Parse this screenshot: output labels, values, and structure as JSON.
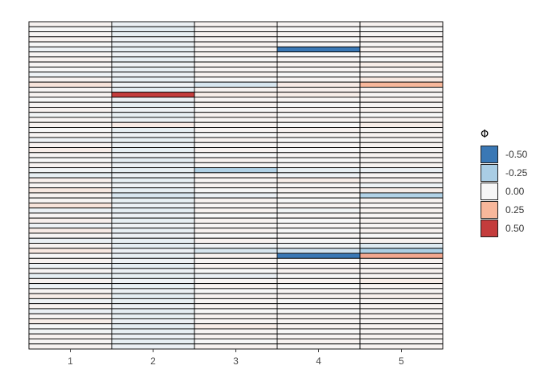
{
  "chart_data": {
    "type": "heatmap",
    "title": "",
    "xlabel": "",
    "ylabel": "",
    "x_categories": [
      "1",
      "2",
      "3",
      "4",
      "5"
    ],
    "n_rows": 65,
    "value_range": [
      -0.6,
      0.6
    ],
    "legend": {
      "title": "Φ",
      "placement": "right",
      "entries": [
        {
          "label": "-0.50",
          "value": -0.5,
          "color": "#3a78b5"
        },
        {
          "label": "-0.25",
          "value": -0.25,
          "color": "#a9cde4"
        },
        {
          "label": "0.00",
          "value": 0.0,
          "color": "#f7f7f7"
        },
        {
          "label": "0.25",
          "value": 0.25,
          "color": "#f8b79b"
        },
        {
          "label": "0.50",
          "value": 0.5,
          "color": "#c43c3c"
        }
      ]
    },
    "cell_border_color": "#000000",
    "cells": [
      [
        0.02,
        -0.04,
        0.02,
        0.01,
        0.02
      ],
      [
        0.0,
        -0.06,
        0.01,
        0.0,
        0.0
      ],
      [
        0.01,
        -0.05,
        0.02,
        0.01,
        0.01
      ],
      [
        0.02,
        -0.03,
        0.01,
        0.0,
        0.02
      ],
      [
        0.0,
        -0.04,
        0.02,
        0.01,
        0.01
      ],
      [
        -0.03,
        -0.05,
        0.01,
        -0.55,
        0.02
      ],
      [
        0.01,
        -0.03,
        0.02,
        0.0,
        0.01
      ],
      [
        0.02,
        -0.05,
        0.0,
        0.01,
        0.0
      ],
      [
        0.01,
        -0.03,
        0.02,
        0.02,
        0.04
      ],
      [
        0.0,
        -0.05,
        0.01,
        0.01,
        0.02
      ],
      [
        -0.03,
        -0.04,
        0.02,
        0.0,
        0.01
      ],
      [
        0.02,
        -0.05,
        0.0,
        0.01,
        0.06
      ],
      [
        0.08,
        -0.03,
        -0.1,
        0.05,
        0.25
      ],
      [
        0.01,
        -0.06,
        0.02,
        0.03,
        0.02
      ],
      [
        0.02,
        0.5,
        0.04,
        0.04,
        0.01
      ],
      [
        0.0,
        -0.04,
        0.01,
        0.01,
        0.02
      ],
      [
        0.01,
        -0.05,
        0.02,
        0.0,
        0.01
      ],
      [
        0.02,
        -0.03,
        0.0,
        0.01,
        0.02
      ],
      [
        -0.02,
        -0.05,
        0.02,
        0.0,
        0.0
      ],
      [
        0.01,
        -0.04,
        0.01,
        0.01,
        0.02
      ],
      [
        0.02,
        0.05,
        0.02,
        0.0,
        0.04
      ],
      [
        0.0,
        -0.05,
        0.01,
        0.02,
        0.01
      ],
      [
        0.01,
        -0.03,
        0.0,
        0.01,
        0.02
      ],
      [
        -0.03,
        -0.05,
        0.02,
        0.0,
        0.01
      ],
      [
        0.02,
        -0.04,
        0.01,
        0.01,
        0.02
      ],
      [
        0.04,
        -0.05,
        0.02,
        0.0,
        0.01
      ],
      [
        0.01,
        -0.03,
        0.0,
        0.01,
        0.02
      ],
      [
        0.0,
        -0.06,
        0.02,
        0.0,
        0.01
      ],
      [
        0.02,
        -0.04,
        0.01,
        0.01,
        0.02
      ],
      [
        -0.02,
        -0.05,
        -0.22,
        -0.05,
        -0.04
      ],
      [
        -0.05,
        -0.04,
        0.02,
        -0.03,
        0.01
      ],
      [
        0.03,
        -0.05,
        0.01,
        0.04,
        0.02
      ],
      [
        0.01,
        -0.03,
        0.02,
        0.01,
        -0.03
      ],
      [
        0.06,
        -0.05,
        0.0,
        0.02,
        0.04
      ],
      [
        0.02,
        -0.1,
        -0.04,
        0.01,
        -0.22
      ],
      [
        0.01,
        -0.05,
        0.02,
        0.0,
        0.02
      ],
      [
        0.08,
        -0.04,
        0.01,
        0.02,
        0.01
      ],
      [
        -0.04,
        -0.06,
        0.02,
        -0.02,
        0.02
      ],
      [
        0.01,
        -0.04,
        0.0,
        0.01,
        0.01
      ],
      [
        0.03,
        -0.05,
        0.02,
        0.0,
        0.02
      ],
      [
        -0.03,
        -0.03,
        0.01,
        0.01,
        0.01
      ],
      [
        0.05,
        -0.05,
        0.02,
        0.0,
        0.02
      ],
      [
        0.01,
        -0.04,
        0.0,
        0.01,
        0.0
      ],
      [
        -0.04,
        -0.05,
        0.02,
        0.0,
        0.02
      ],
      [
        0.02,
        -0.06,
        -0.03,
        -0.02,
        -0.08
      ],
      [
        0.06,
        -0.04,
        -0.1,
        -0.12,
        -0.24
      ],
      [
        0.0,
        -0.05,
        0.02,
        -0.68,
        0.28
      ],
      [
        0.02,
        -0.03,
        0.01,
        0.0,
        0.02
      ],
      [
        -0.03,
        -0.06,
        0.02,
        0.01,
        0.01
      ],
      [
        0.01,
        -0.04,
        0.0,
        0.02,
        0.02
      ],
      [
        -0.05,
        -0.05,
        -0.04,
        0.0,
        0.01
      ],
      [
        0.02,
        -0.03,
        0.01,
        0.02,
        0.04
      ],
      [
        -0.03,
        -0.05,
        0.02,
        0.0,
        0.02
      ],
      [
        0.01,
        -0.04,
        0.0,
        0.01,
        0.01
      ],
      [
        0.04,
        -0.06,
        0.02,
        0.02,
        0.03
      ],
      [
        -0.03,
        -0.05,
        0.01,
        0.0,
        0.01
      ],
      [
        0.02,
        -0.04,
        0.02,
        0.01,
        0.02
      ],
      [
        -0.04,
        -0.06,
        0.0,
        0.0,
        0.01
      ],
      [
        0.01,
        -0.05,
        0.02,
        0.02,
        0.02
      ],
      [
        0.04,
        -0.04,
        0.01,
        0.01,
        0.01
      ],
      [
        0.0,
        -0.06,
        0.04,
        0.02,
        0.02
      ],
      [
        -0.02,
        -0.05,
        0.01,
        0.0,
        0.01
      ],
      [
        0.02,
        -0.04,
        0.02,
        0.01,
        0.02
      ],
      [
        0.01,
        -0.05,
        0.0,
        0.02,
        0.01
      ],
      [
        0.02,
        -0.04,
        0.02,
        0.01,
        0.02
      ]
    ]
  }
}
